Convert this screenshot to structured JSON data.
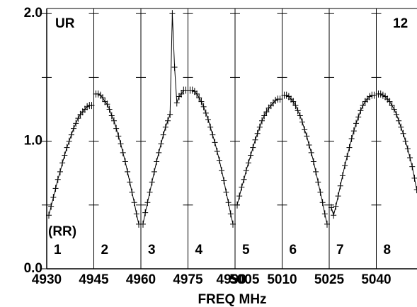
{
  "chart_data": {
    "type": "line",
    "marker": "plus",
    "color": "#000000",
    "corner_left": "UR",
    "corner_right": "12",
    "pol_label": "(RR)",
    "xlabel": "FREQ MHz",
    "xtick_labels": [
      "4930",
      "4945",
      "4960",
      "4975",
      "4990",
      "5005",
      "5010",
      "5025",
      "5040"
    ],
    "ylim": [
      0,
      2.04
    ],
    "yticks": [
      {
        "value": 0,
        "label": "0.0"
      },
      {
        "value": 1,
        "label": "1.0"
      },
      {
        "value": 2,
        "label": "2.0"
      }
    ],
    "yticks_minor": [
      0.5,
      1.5
    ],
    "panels": [
      {
        "label": "1",
        "values": [
          0.42,
          0.49,
          0.56,
          0.63,
          0.7,
          0.76,
          0.83,
          0.89,
          0.95,
          1.0,
          1.05,
          1.1,
          1.14,
          1.18,
          1.21,
          1.23,
          1.25,
          1.27,
          1.28,
          1.28
        ]
      },
      {
        "label": "2",
        "values": [
          1.37,
          1.37,
          1.36,
          1.34,
          1.31,
          1.29,
          1.25,
          1.2,
          1.16,
          1.1,
          1.04,
          0.98,
          0.91,
          0.84,
          0.76,
          0.68,
          0.6,
          0.52,
          0.43,
          0.35
        ]
      },
      {
        "label": "3",
        "values": [
          0.35,
          0.44,
          0.52,
          0.6,
          0.68,
          0.76,
          0.84,
          0.91,
          0.98,
          1.05,
          1.11,
          1.16,
          1.21,
          2.0,
          1.58,
          1.3,
          1.35,
          1.37,
          1.4,
          1.4
        ]
      },
      {
        "label": "4",
        "values": [
          1.4,
          1.4,
          1.39,
          1.37,
          1.34,
          1.31,
          1.27,
          1.22,
          1.17,
          1.11,
          1.05,
          0.99,
          0.92,
          0.85,
          0.77,
          0.69,
          0.6,
          0.52,
          0.43,
          0.35
        ]
      },
      {
        "label": "5",
        "values": [
          0.5,
          0.57,
          0.64,
          0.7,
          0.77,
          0.83,
          0.89,
          0.95,
          1.01,
          1.06,
          1.11,
          1.16,
          1.2,
          1.23,
          1.26,
          1.28,
          1.3,
          1.32,
          1.33,
          1.33
        ]
      },
      {
        "label": "6",
        "values": [
          1.36,
          1.36,
          1.35,
          1.33,
          1.31,
          1.28,
          1.24,
          1.2,
          1.15,
          1.09,
          1.04,
          0.97,
          0.91,
          0.84,
          0.76,
          0.68,
          0.6,
          0.52,
          0.43,
          0.35
        ]
      },
      {
        "label": "7",
        "values": [
          0.48,
          0.42,
          0.49,
          0.57,
          0.65,
          0.73,
          0.81,
          0.88,
          0.95,
          1.02,
          1.08,
          1.14,
          1.19,
          1.24,
          1.28,
          1.31,
          1.33,
          1.35,
          1.36,
          1.36
        ]
      },
      {
        "label": "8",
        "values": [
          1.37,
          1.37,
          1.36,
          1.35,
          1.33,
          1.31,
          1.28,
          1.25,
          1.21,
          1.16,
          1.11,
          1.06,
          1.0,
          0.94,
          0.87,
          0.8,
          0.71,
          0.62
        ]
      }
    ]
  }
}
